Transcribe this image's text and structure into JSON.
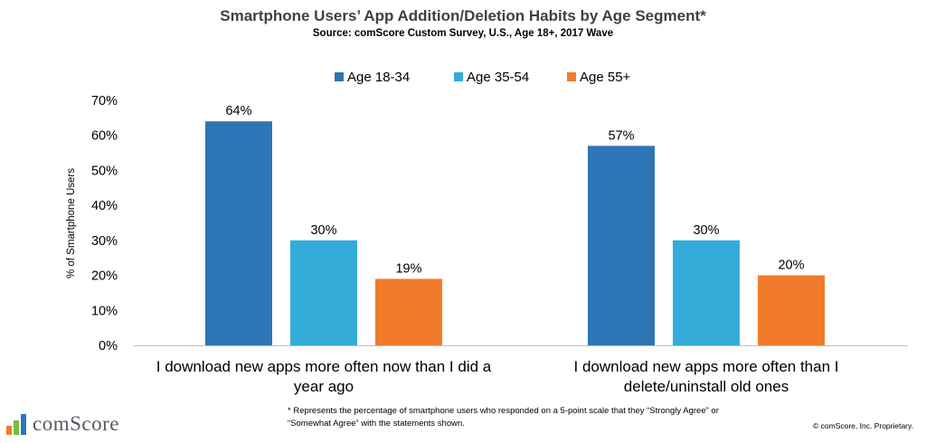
{
  "header": {
    "title": "Smartphone Users’ App Addition/Deletion Habits by Age Segment*",
    "subtitle": "Source: comScore Custom Survey, U.S., Age 18+, 2017 Wave"
  },
  "footer": {
    "footnote": "* Represents the percentage of smartphone users who responded on a 5-point scale that they “Strongly Agree” or “Somewhat Agree” with the statements shown.",
    "copyright": "© comScore, Inc. Proprietary.",
    "logo_text": "comScore"
  },
  "colors": {
    "series": [
      "#2e75b6",
      "#33acd9",
      "#f07b2a"
    ],
    "axis": "#bfbfbf",
    "text": "#000000"
  },
  "chart_data": {
    "type": "bar",
    "title": "Smartphone Users’ App Addition/Deletion Habits by Age Segment*",
    "subtitle": "Source: comScore Custom Survey, U.S., Age 18+, 2017 Wave",
    "ylabel": "% of Smartphone Users",
    "xlabel": "",
    "ylim": [
      0,
      70
    ],
    "yticks": [
      "0%",
      "10%",
      "20%",
      "30%",
      "40%",
      "50%",
      "60%",
      "70%"
    ],
    "grid": false,
    "legend": "top-center",
    "categories": [
      [
        "I download new apps more often now than I did a",
        "year ago"
      ],
      [
        "I download new apps more often than I",
        "delete/uninstall old ones"
      ]
    ],
    "series": [
      {
        "name": "Age 18-34",
        "values": [
          64,
          57
        ],
        "labels": [
          "64%",
          "57%"
        ]
      },
      {
        "name": "Age 35-54",
        "values": [
          30,
          30
        ],
        "labels": [
          "30%",
          "30%"
        ]
      },
      {
        "name": "Age 55+",
        "values": [
          19,
          20
        ],
        "labels": [
          "19%",
          "20%"
        ]
      }
    ]
  }
}
